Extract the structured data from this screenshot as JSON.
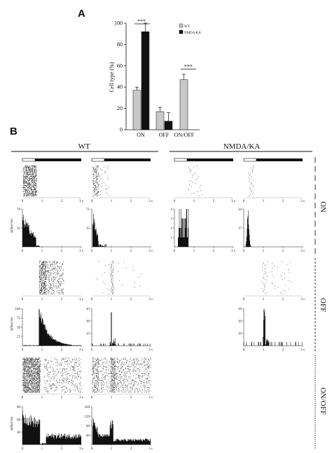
{
  "panel_a": {
    "letter": "A",
    "chart_data": {
      "type": "bar",
      "categories": [
        "ON",
        "OFF",
        "ON/OFF"
      ],
      "series": [
        {
          "name": "WT",
          "values": [
            37,
            17,
            47
          ],
          "errors": [
            3,
            4,
            5
          ],
          "color": "#c8c8c8"
        },
        {
          "name": "NMDA/KA",
          "values": [
            92,
            8,
            0
          ],
          "errors": [
            8,
            8,
            0
          ],
          "color": "#111111"
        }
      ],
      "ylabel": "Cell type (%)",
      "ylim": [
        0,
        100
      ],
      "yticks": [
        "0",
        "20",
        "40",
        "60",
        "80",
        "100"
      ],
      "legend_position": "top-right",
      "annotations": [
        {
          "text": "***",
          "category": "ON"
        },
        {
          "text": "***",
          "category": "ON/OFF"
        }
      ]
    }
  },
  "panel_b": {
    "letter": "B",
    "groups": [
      "WT",
      "NMDA/KA"
    ],
    "rows": [
      "ON",
      "OFF",
      "ON/OFF"
    ],
    "ylabel": "spikes/sec",
    "xticks": [
      "0",
      "1",
      "2",
      "3 s"
    ],
    "histograms": [
      {
        "id": "on-wt1",
        "yticks": [
          "70",
          "35"
        ],
        "ymax": 70
      },
      {
        "id": "on-wt2",
        "yticks": [
          "71",
          "35"
        ],
        "ymax": 71
      },
      {
        "id": "on-ko1",
        "yticks": [
          "4",
          "3",
          "2",
          "1"
        ],
        "ymax": 4
      },
      {
        "id": "on-ko2",
        "yticks": [
          "34",
          "17"
        ],
        "ymax": 34
      },
      {
        "id": "off-wt1",
        "yticks": [
          "100",
          "75",
          "50",
          "25"
        ],
        "ymax": 100
      },
      {
        "id": "off-wt2",
        "yticks": [
          "45",
          "30",
          "15"
        ],
        "ymax": 45
      },
      {
        "id": "off-ko2",
        "yticks": [
          "30",
          "20",
          "10"
        ],
        "ymax": 30
      },
      {
        "id": "onoff-wt1",
        "yticks": [
          "90",
          "60",
          "30"
        ],
        "ymax": 90
      },
      {
        "id": "onoff-wt2",
        "yticks": [
          "160",
          "120",
          "80",
          "40"
        ],
        "ymax": 160
      }
    ]
  }
}
